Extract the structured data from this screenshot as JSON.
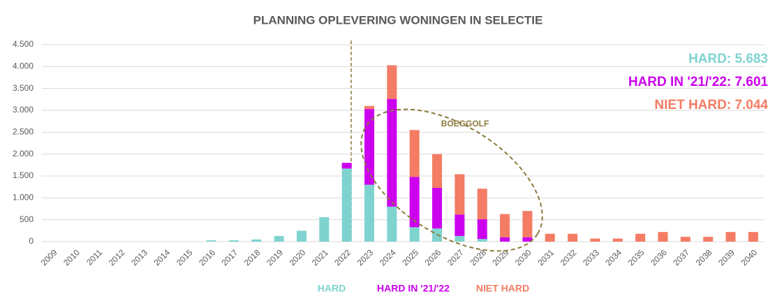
{
  "chart_data": {
    "type": "stacked_bar",
    "title": "PLANNING OPLEVERING WONINGEN IN SELECTIE",
    "categories": [
      "2009",
      "2010",
      "2011",
      "2012",
      "2013",
      "2014",
      "2015",
      "2016",
      "2017",
      "2018",
      "2019",
      "2020",
      "2021",
      "2022",
      "2023",
      "2024",
      "2025",
      "2026",
      "2027",
      "2028",
      "2029",
      "2030",
      "2031",
      "2032",
      "2033",
      "2034",
      "2035",
      "2036",
      "2037",
      "2038",
      "2039",
      "2040"
    ],
    "series": [
      {
        "name": "HARD",
        "color": "#7fd3cf",
        "values": [
          0,
          0,
          0,
          0,
          0,
          0,
          0,
          30,
          30,
          50,
          130,
          250,
          560,
          1670,
          1300,
          800,
          330,
          300,
          130,
          60,
          0,
          0,
          0,
          0,
          0,
          0,
          0,
          0,
          0,
          0,
          0,
          0
        ]
      },
      {
        "name": "HARD IN '21/'22",
        "color": "#cc00ee",
        "values": [
          0,
          0,
          0,
          0,
          0,
          0,
          0,
          0,
          0,
          0,
          0,
          0,
          0,
          130,
          1730,
          2460,
          1150,
          930,
          490,
          450,
          100,
          100,
          0,
          0,
          0,
          0,
          0,
          0,
          0,
          0,
          0,
          0
        ]
      },
      {
        "name": "NIET HARD",
        "color": "#f47c64",
        "values": [
          0,
          0,
          0,
          0,
          0,
          0,
          0,
          0,
          0,
          0,
          0,
          0,
          0,
          0,
          70,
          770,
          1070,
          770,
          920,
          700,
          530,
          600,
          180,
          180,
          70,
          70,
          180,
          220,
          110,
          110,
          220,
          220
        ]
      }
    ],
    "ylim": [
      0,
      4500
    ],
    "yticks": [
      0,
      500,
      {
        "value": 1000,
        "label": "1.000"
      },
      {
        "value": 1500,
        "label": "1.500"
      },
      {
        "value": 2000,
        "label": "2.000"
      },
      {
        "value": 2500,
        "label": "2.500"
      },
      {
        "value": 3000,
        "label": "3.000"
      },
      {
        "value": 3500,
        "label": "3.500"
      },
      {
        "value": 4000,
        "label": "4.000"
      },
      {
        "value": 4500,
        "label": "4.500"
      }
    ],
    "grid": true,
    "annotations": [
      {
        "text": "HARD: 5.683",
        "color": "#7fd3cf"
      },
      {
        "text": "HARD IN '21/'22: 7.601",
        "color": "#cc00ee"
      },
      {
        "text": "NIET HARD: 7.044",
        "color": "#f47c64"
      },
      {
        "text": "BOEGGOLF",
        "color": "#8a7a3c"
      }
    ]
  }
}
